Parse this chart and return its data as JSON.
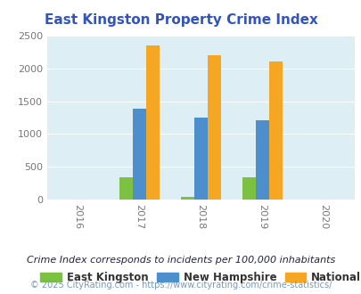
{
  "title": "East Kingston Property Crime Index",
  "years": [
    2016,
    2017,
    2018,
    2019,
    2020
  ],
  "bar_years": [
    2017,
    2018,
    2019
  ],
  "east_kingston": [
    350,
    40,
    340
  ],
  "new_hampshire": [
    1385,
    1255,
    1205
  ],
  "national": [
    2350,
    2200,
    2100
  ],
  "bar_width": 0.22,
  "colors": {
    "east_kingston": "#7dc142",
    "new_hampshire": "#4d8fcc",
    "national": "#f5a623"
  },
  "ylim": [
    0,
    2500
  ],
  "yticks": [
    0,
    500,
    1000,
    1500,
    2000,
    2500
  ],
  "xlim": [
    2015.5,
    2020.5
  ],
  "bg_color": "#ddeef4",
  "title_color": "#3355bb",
  "legend_labels": [
    "East Kingston",
    "New Hampshire",
    "National"
  ],
  "legend_text_color": "#333333",
  "footnote1": "Crime Index corresponds to incidents per 100,000 inhabitants",
  "footnote2": "© 2025 CityRating.com - https://www.cityrating.com/crime-statistics/",
  "footnote_color1": "#222244",
  "footnote_color2": "#7799bb"
}
